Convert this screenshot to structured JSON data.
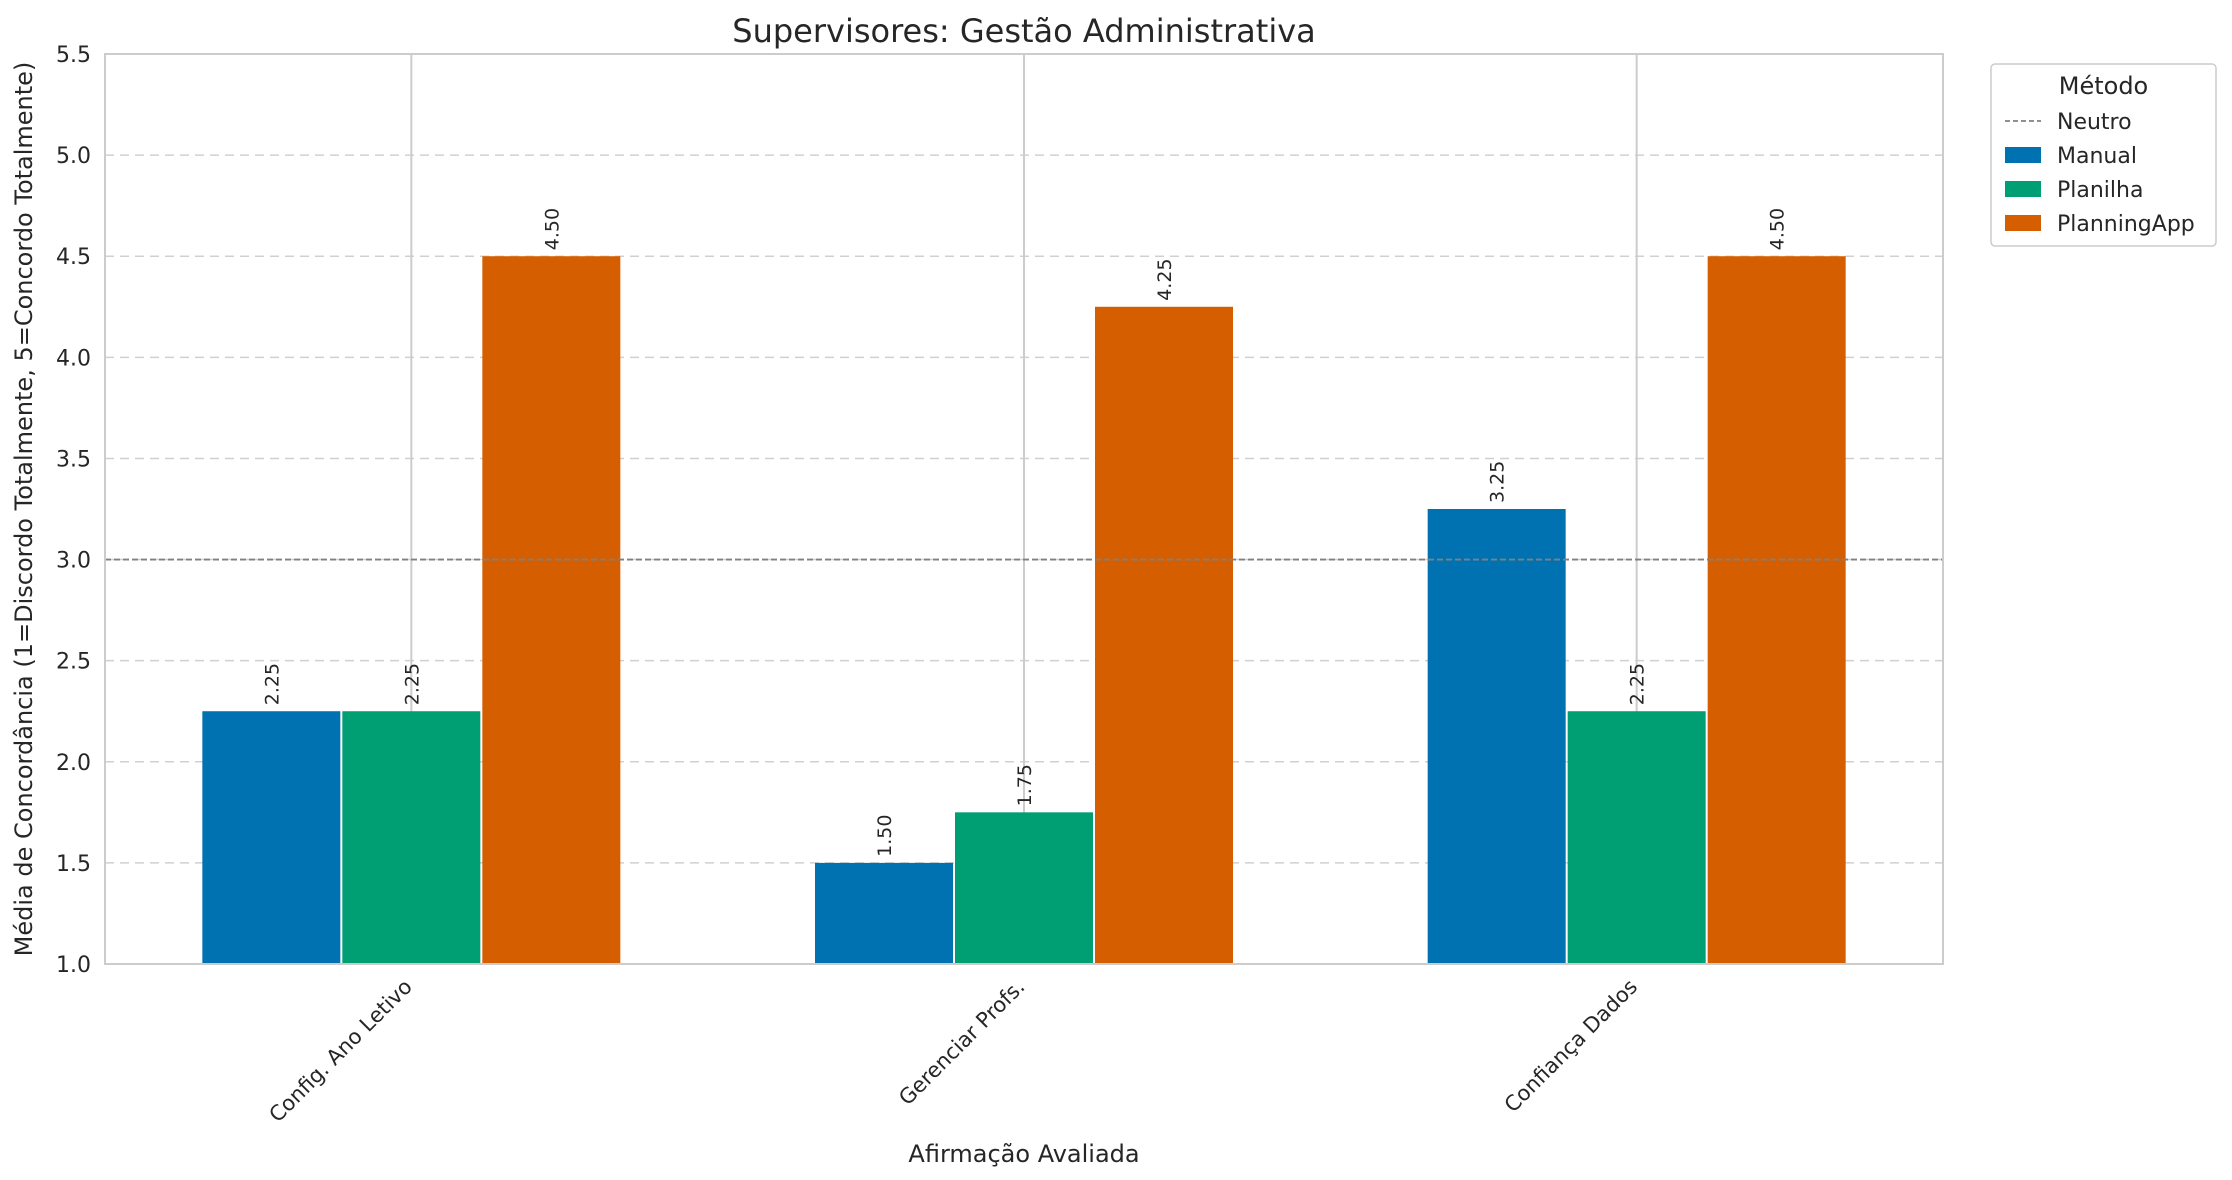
{
  "chart_data": {
    "type": "bar",
    "title": "Supervisores: Gestão Administrativa",
    "xlabel": "Afirmação Avaliada",
    "ylabel": "Média de Concordância (1=Discordo Totalmente, 5=Concordo Totalmente)",
    "categories": [
      "Config. Ano Letivo",
      "Gerenciar Profs.",
      "Confiança Dados"
    ],
    "series": [
      {
        "name": "Manual",
        "color": "#0072B2",
        "values": [
          2.25,
          1.5,
          3.25
        ]
      },
      {
        "name": "Planilha",
        "color": "#009E73",
        "values": [
          2.25,
          1.75,
          2.25
        ]
      },
      {
        "name": "PlanningApp",
        "color": "#D55E00",
        "values": [
          4.5,
          4.25,
          4.5
        ]
      }
    ],
    "reference_line": {
      "name": "Neutro",
      "value": 3.0,
      "color": "#808080",
      "style": "dashed"
    },
    "ylim": [
      1.0,
      5.5
    ],
    "yticks": [
      "1.0",
      "1.5",
      "2.0",
      "2.5",
      "3.0",
      "3.5",
      "4.0",
      "4.5",
      "5.0",
      "5.5"
    ],
    "grid": true,
    "legend": {
      "title": "Método",
      "placement": "outside-top-right"
    }
  }
}
